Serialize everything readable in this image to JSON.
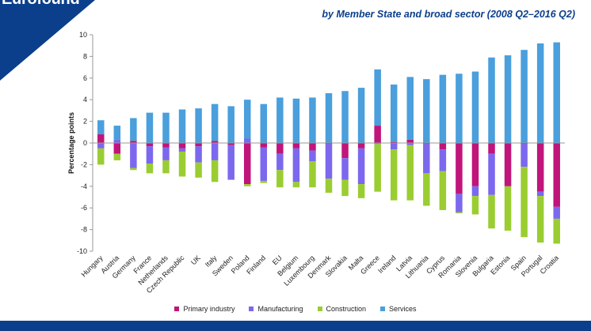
{
  "header": {
    "brand": "Eurofound",
    "subtitle": "by Member State and broad sector (2008 Q2–2016 Q2)"
  },
  "colors": {
    "primary": "#c0157a",
    "manufacturing": "#7b68ee",
    "construction": "#9acd32",
    "services": "#4a9fdc",
    "brand_blue": "#0b3f8c"
  },
  "chart_data": {
    "type": "bar",
    "stacked": true,
    "title": "",
    "xlabel": "",
    "ylabel": "Percentage points",
    "ylim": [
      -10,
      10
    ],
    "yticks": [
      10,
      8,
      6,
      4,
      2,
      0,
      -2,
      -4,
      -6,
      -8,
      -10
    ],
    "grid": false,
    "legend_position": "bottom",
    "categories": [
      "Hungary",
      "Austria",
      "Germany",
      "France",
      "Netherlands",
      "Czech Republic",
      "UK",
      "Italy",
      "Sweden",
      "Poland",
      "Finland",
      "EU",
      "Belgium",
      "Luxembourg",
      "Denmark",
      "Slovakia",
      "Malta",
      "Greece",
      "Ireland",
      "Latvia",
      "Lithuania",
      "Cyprus",
      "Romania",
      "Slovenia",
      "Bulgaria",
      "Estonia",
      "Spain",
      "Portugal",
      "Croatia"
    ],
    "series": [
      {
        "name": "Primary industry",
        "values": [
          0.8,
          -1.0,
          0.2,
          -0.3,
          -0.4,
          -0.5,
          -0.3,
          0.2,
          -0.2,
          -3.8,
          -0.4,
          -1.0,
          -0.5,
          -0.7,
          -0.1,
          -1.4,
          -0.5,
          1.6,
          0.1,
          0.3,
          -0.1,
          -0.6,
          -4.7,
          -4.0,
          -1.0,
          -4.0,
          -0.1,
          -4.5,
          -5.9
        ]
      },
      {
        "name": "Manufacturing",
        "values": [
          -0.5,
          0.3,
          -2.3,
          -1.6,
          -1.2,
          -0.3,
          -1.5,
          -1.6,
          -3.2,
          0.4,
          -3.1,
          -1.5,
          -3.1,
          -1.0,
          -3.2,
          -2.0,
          -3.3,
          -0.1,
          -0.6,
          -0.2,
          -2.7,
          -2.0,
          -1.7,
          -0.9,
          -3.8,
          0.0,
          -2.1,
          -0.4,
          -1.1
        ]
      },
      {
        "name": "Construction",
        "values": [
          -1.5,
          -0.6,
          -0.2,
          -0.9,
          -1.2,
          -2.3,
          -1.4,
          -2.0,
          0.0,
          -0.2,
          -0.2,
          -1.6,
          -0.5,
          -2.4,
          -1.3,
          -1.5,
          -1.3,
          -4.4,
          -4.7,
          -5.1,
          -3.0,
          -3.6,
          -0.1,
          -1.7,
          -3.1,
          -4.1,
          -6.5,
          -4.3,
          -2.3
        ]
      },
      {
        "name": "Services",
        "values": [
          1.3,
          1.3,
          2.1,
          2.8,
          2.8,
          3.1,
          3.2,
          3.4,
          3.4,
          3.6,
          3.6,
          4.2,
          4.1,
          4.2,
          4.6,
          4.8,
          5.1,
          5.2,
          5.3,
          5.8,
          5.9,
          6.3,
          6.4,
          6.6,
          7.9,
          8.1,
          8.6,
          9.2,
          9.3
        ]
      }
    ]
  }
}
